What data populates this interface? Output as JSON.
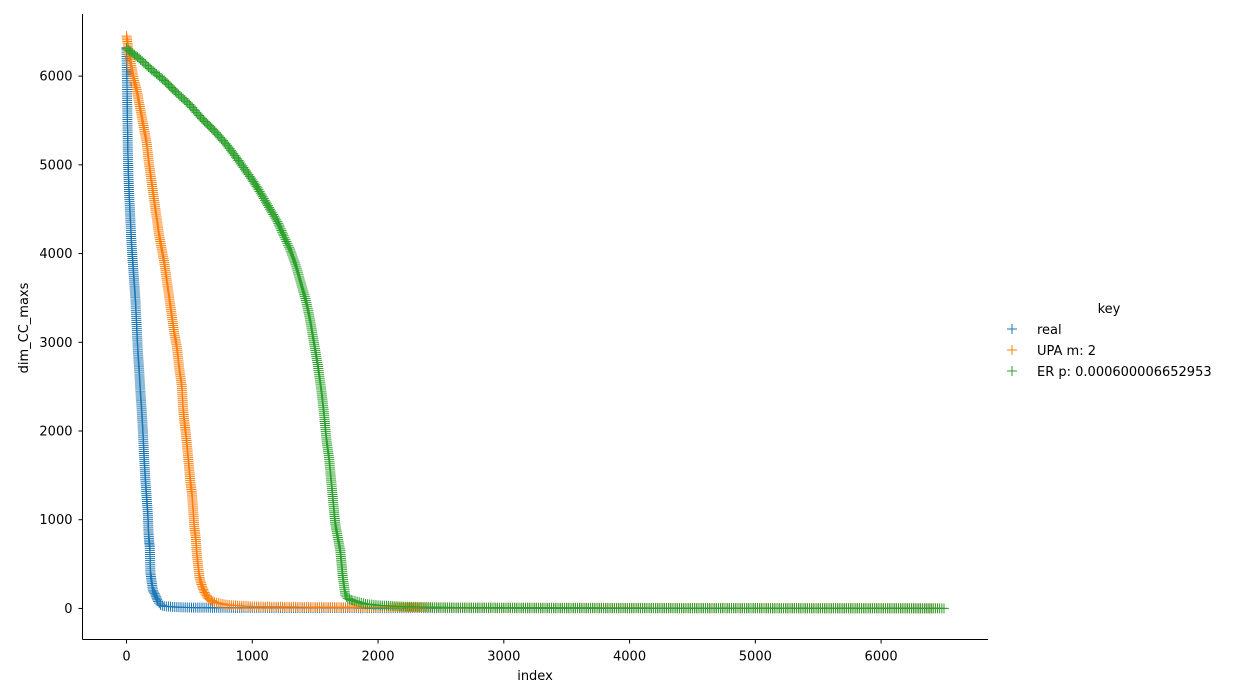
{
  "chart_data": {
    "type": "scatter",
    "marker": "+",
    "xlabel": "index",
    "ylabel": "dim_CC_maxs",
    "xlim": [
      -350,
      6850
    ],
    "ylim": [
      -350,
      6700
    ],
    "xticks": [
      0,
      1000,
      2000,
      3000,
      4000,
      5000,
      6000
    ],
    "yticks": [
      0,
      1000,
      2000,
      3000,
      4000,
      5000,
      6000
    ],
    "grid": false,
    "legend": {
      "title": "key",
      "placement": "right"
    },
    "series": [
      {
        "name": "real",
        "color": "#1f77b4",
        "points": [
          [
            0,
            6320
          ],
          [
            5,
            5750
          ],
          [
            10,
            5200
          ],
          [
            15,
            4900
          ],
          [
            20,
            4700
          ],
          [
            30,
            4400
          ],
          [
            40,
            4100
          ],
          [
            50,
            3900
          ],
          [
            60,
            3700
          ],
          [
            70,
            3500
          ],
          [
            80,
            3200
          ],
          [
            90,
            2900
          ],
          [
            100,
            2700
          ],
          [
            110,
            2450
          ],
          [
            120,
            2250
          ],
          [
            130,
            2000
          ],
          [
            140,
            1700
          ],
          [
            150,
            1450
          ],
          [
            160,
            1250
          ],
          [
            170,
            1050
          ],
          [
            175,
            850
          ],
          [
            180,
            750
          ],
          [
            185,
            700
          ],
          [
            190,
            400
          ],
          [
            200,
            300
          ],
          [
            210,
            200
          ],
          [
            230,
            150
          ],
          [
            250,
            80
          ],
          [
            270,
            40
          ],
          [
            300,
            25
          ],
          [
            400,
            15
          ],
          [
            500,
            10
          ],
          [
            700,
            8
          ],
          [
            1000,
            6
          ],
          [
            1500,
            5
          ],
          [
            2000,
            4
          ],
          [
            3000,
            3
          ],
          [
            4000,
            2
          ],
          [
            5000,
            2
          ],
          [
            6000,
            1
          ],
          [
            6400,
            1
          ]
        ]
      },
      {
        "name": "UPA m: 2",
        "color": "#ff7f0e",
        "points": [
          [
            0,
            6450
          ],
          [
            10,
            6350
          ],
          [
            20,
            6250
          ],
          [
            40,
            6100
          ],
          [
            60,
            5950
          ],
          [
            80,
            5850
          ],
          [
            100,
            5700
          ],
          [
            120,
            5550
          ],
          [
            140,
            5400
          ],
          [
            160,
            5250
          ],
          [
            180,
            5000
          ],
          [
            200,
            4800
          ],
          [
            220,
            4600
          ],
          [
            240,
            4400
          ],
          [
            260,
            4200
          ],
          [
            280,
            4050
          ],
          [
            300,
            3900
          ],
          [
            320,
            3700
          ],
          [
            340,
            3500
          ],
          [
            360,
            3300
          ],
          [
            380,
            3100
          ],
          [
            400,
            2950
          ],
          [
            420,
            2700
          ],
          [
            440,
            2500
          ],
          [
            450,
            2250
          ],
          [
            460,
            2100
          ],
          [
            470,
            2000
          ],
          [
            480,
            1850
          ],
          [
            490,
            1700
          ],
          [
            500,
            1550
          ],
          [
            510,
            1400
          ],
          [
            520,
            1300
          ],
          [
            530,
            1100
          ],
          [
            540,
            900
          ],
          [
            550,
            800
          ],
          [
            560,
            600
          ],
          [
            580,
            350
          ],
          [
            600,
            250
          ],
          [
            620,
            180
          ],
          [
            650,
            110
          ],
          [
            700,
            70
          ],
          [
            800,
            40
          ],
          [
            900,
            30
          ],
          [
            1000,
            22
          ],
          [
            1500,
            15
          ],
          [
            2000,
            12
          ],
          [
            3000,
            8
          ],
          [
            4000,
            6
          ],
          [
            5000,
            4
          ],
          [
            6000,
            3
          ],
          [
            6450,
            2
          ]
        ]
      },
      {
        "name": "ER p: 0.000600006652953",
        "color": "#2ca02c",
        "points": [
          [
            0,
            6310
          ],
          [
            100,
            6200
          ],
          [
            200,
            6070
          ],
          [
            300,
            5950
          ],
          [
            400,
            5810
          ],
          [
            500,
            5680
          ],
          [
            600,
            5520
          ],
          [
            700,
            5380
          ],
          [
            800,
            5220
          ],
          [
            900,
            5030
          ],
          [
            1000,
            4830
          ],
          [
            1050,
            4720
          ],
          [
            1100,
            4600
          ],
          [
            1150,
            4480
          ],
          [
            1200,
            4360
          ],
          [
            1250,
            4200
          ],
          [
            1300,
            4050
          ],
          [
            1350,
            3850
          ],
          [
            1400,
            3600
          ],
          [
            1430,
            3450
          ],
          [
            1460,
            3250
          ],
          [
            1490,
            3000
          ],
          [
            1520,
            2750
          ],
          [
            1550,
            2450
          ],
          [
            1570,
            2200
          ],
          [
            1590,
            1900
          ],
          [
            1610,
            1700
          ],
          [
            1630,
            1400
          ],
          [
            1650,
            1100
          ],
          [
            1660,
            950
          ],
          [
            1680,
            800
          ],
          [
            1700,
            650
          ],
          [
            1710,
            500
          ],
          [
            1720,
            350
          ],
          [
            1740,
            150
          ],
          [
            1760,
            110
          ],
          [
            1800,
            90
          ],
          [
            1850,
            70
          ],
          [
            1900,
            50
          ],
          [
            2000,
            35
          ],
          [
            2200,
            20
          ],
          [
            2500,
            12
          ],
          [
            3000,
            8
          ],
          [
            4000,
            5
          ],
          [
            5000,
            3
          ],
          [
            6000,
            2
          ],
          [
            6500,
            1
          ]
        ]
      }
    ]
  }
}
